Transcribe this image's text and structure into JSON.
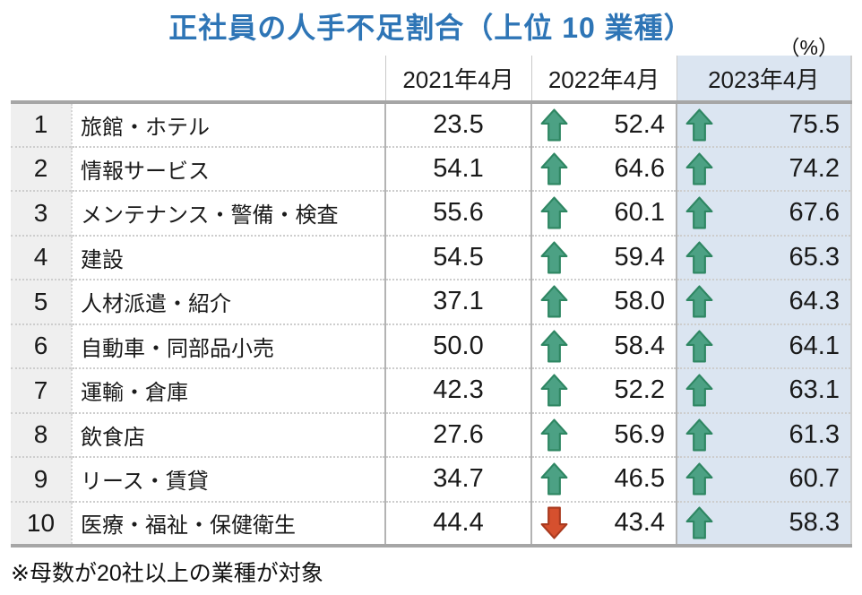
{
  "title": "正社員の人手不足割合（上位 10 業種）",
  "unit_label": "（%）",
  "note": "※母数が20社以上の業種が対象",
  "colors": {
    "title_blue": "#2e75b6",
    "highlight_column_bg": "#dbe5f1",
    "rank_column_bg": "#efefef",
    "up_arrow_fill": "#4ca184",
    "up_arrow_stroke": "#2e8662",
    "down_arrow_fill": "#d6502e",
    "down_arrow_stroke": "#a93a1f"
  },
  "icons": {
    "up_trend": "up-arrow-icon",
    "down_trend": "down-arrow-icon"
  },
  "chart_data": {
    "type": "table",
    "title": "正社員の人手不足割合（上位 10 業種）",
    "unit": "%",
    "columns": [
      "2021年4月",
      "2022年4月",
      "2023年4月"
    ],
    "rows": [
      {
        "rank": "1",
        "industry": "旅館・ホテル",
        "y2021": "23.5",
        "y2022": "52.4",
        "y2022_trend": "up",
        "y2023": "75.5",
        "y2023_trend": "up"
      },
      {
        "rank": "2",
        "industry": "情報サービス",
        "y2021": "54.1",
        "y2022": "64.6",
        "y2022_trend": "up",
        "y2023": "74.2",
        "y2023_trend": "up"
      },
      {
        "rank": "3",
        "industry": "メンテナンス・警備・検査",
        "y2021": "55.6",
        "y2022": "60.1",
        "y2022_trend": "up",
        "y2023": "67.6",
        "y2023_trend": "up"
      },
      {
        "rank": "4",
        "industry": "建設",
        "y2021": "54.5",
        "y2022": "59.4",
        "y2022_trend": "up",
        "y2023": "65.3",
        "y2023_trend": "up"
      },
      {
        "rank": "5",
        "industry": "人材派遣・紹介",
        "y2021": "37.1",
        "y2022": "58.0",
        "y2022_trend": "up",
        "y2023": "64.3",
        "y2023_trend": "up"
      },
      {
        "rank": "6",
        "industry": "自動車・同部品小売",
        "y2021": "50.0",
        "y2022": "58.4",
        "y2022_trend": "up",
        "y2023": "64.1",
        "y2023_trend": "up"
      },
      {
        "rank": "7",
        "industry": "運輸・倉庫",
        "y2021": "42.3",
        "y2022": "52.2",
        "y2022_trend": "up",
        "y2023": "63.1",
        "y2023_trend": "up"
      },
      {
        "rank": "8",
        "industry": "飲食店",
        "y2021": "27.6",
        "y2022": "56.9",
        "y2022_trend": "up",
        "y2023": "61.3",
        "y2023_trend": "up"
      },
      {
        "rank": "9",
        "industry": "リース・賃貸",
        "y2021": "34.7",
        "y2022": "46.5",
        "y2022_trend": "up",
        "y2023": "60.7",
        "y2023_trend": "up"
      },
      {
        "rank": "10",
        "industry": "医療・福祉・保健衛生",
        "y2021": "44.4",
        "y2022": "43.4",
        "y2022_trend": "down",
        "y2023": "58.3",
        "y2023_trend": "up"
      }
    ]
  }
}
